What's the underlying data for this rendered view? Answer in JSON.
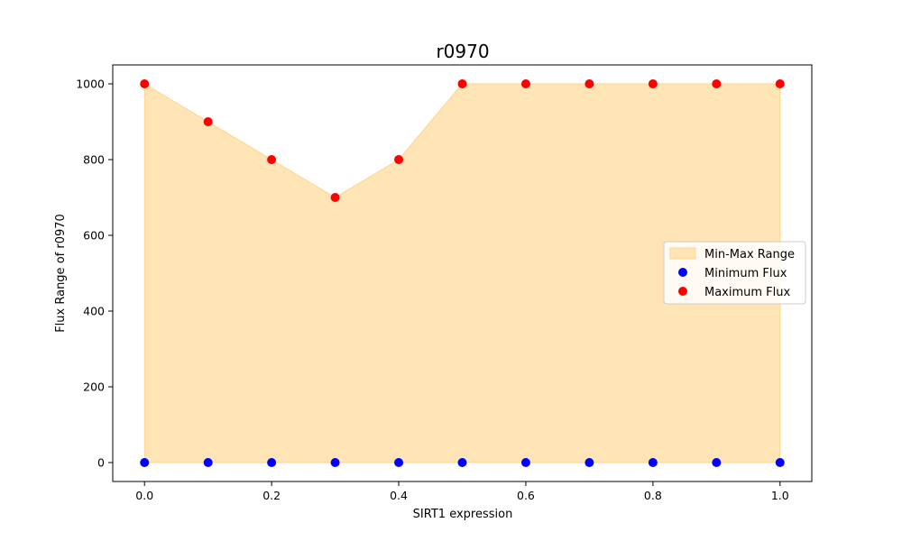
{
  "chart_data": {
    "type": "scatter",
    "title": "r0970",
    "xlabel": "SIRT1 expression",
    "ylabel": "Flux Range of r0970",
    "x": [
      0.0,
      0.1,
      0.2,
      0.3,
      0.4,
      0.5,
      0.6,
      0.7,
      0.8,
      0.9,
      1.0
    ],
    "xlim": [
      -0.05,
      1.05
    ],
    "ylim": [
      -50,
      1050
    ],
    "x_ticks": [
      "0.0",
      "0.2",
      "0.4",
      "0.6",
      "0.8",
      "1.0"
    ],
    "x_tick_values": [
      0.0,
      0.2,
      0.4,
      0.6,
      0.8,
      1.0
    ],
    "y_ticks": [
      "0",
      "200",
      "400",
      "600",
      "800",
      "1000"
    ],
    "y_tick_values": [
      0,
      200,
      400,
      600,
      800,
      1000
    ],
    "grid": false,
    "legend_position": "center-right",
    "series": [
      {
        "name": "Min-Max Range",
        "kind": "fill_between",
        "color": "#FFE4B5",
        "edge_color": "#FFD58A",
        "lower": [
          0,
          0,
          0,
          0,
          0,
          0,
          0,
          0,
          0,
          0,
          0
        ],
        "upper": [
          1000,
          900,
          800,
          700,
          800,
          1000,
          1000,
          1000,
          1000,
          1000,
          1000
        ]
      },
      {
        "name": "Minimum Flux",
        "kind": "scatter",
        "color": "#0000FF",
        "values": [
          0,
          0,
          0,
          0,
          0,
          0,
          0,
          0,
          0,
          0,
          0
        ]
      },
      {
        "name": "Maximum Flux",
        "kind": "scatter",
        "color": "#FF0000",
        "values": [
          1000,
          900,
          800,
          700,
          800,
          1000,
          1000,
          1000,
          1000,
          1000,
          1000
        ]
      }
    ]
  }
}
